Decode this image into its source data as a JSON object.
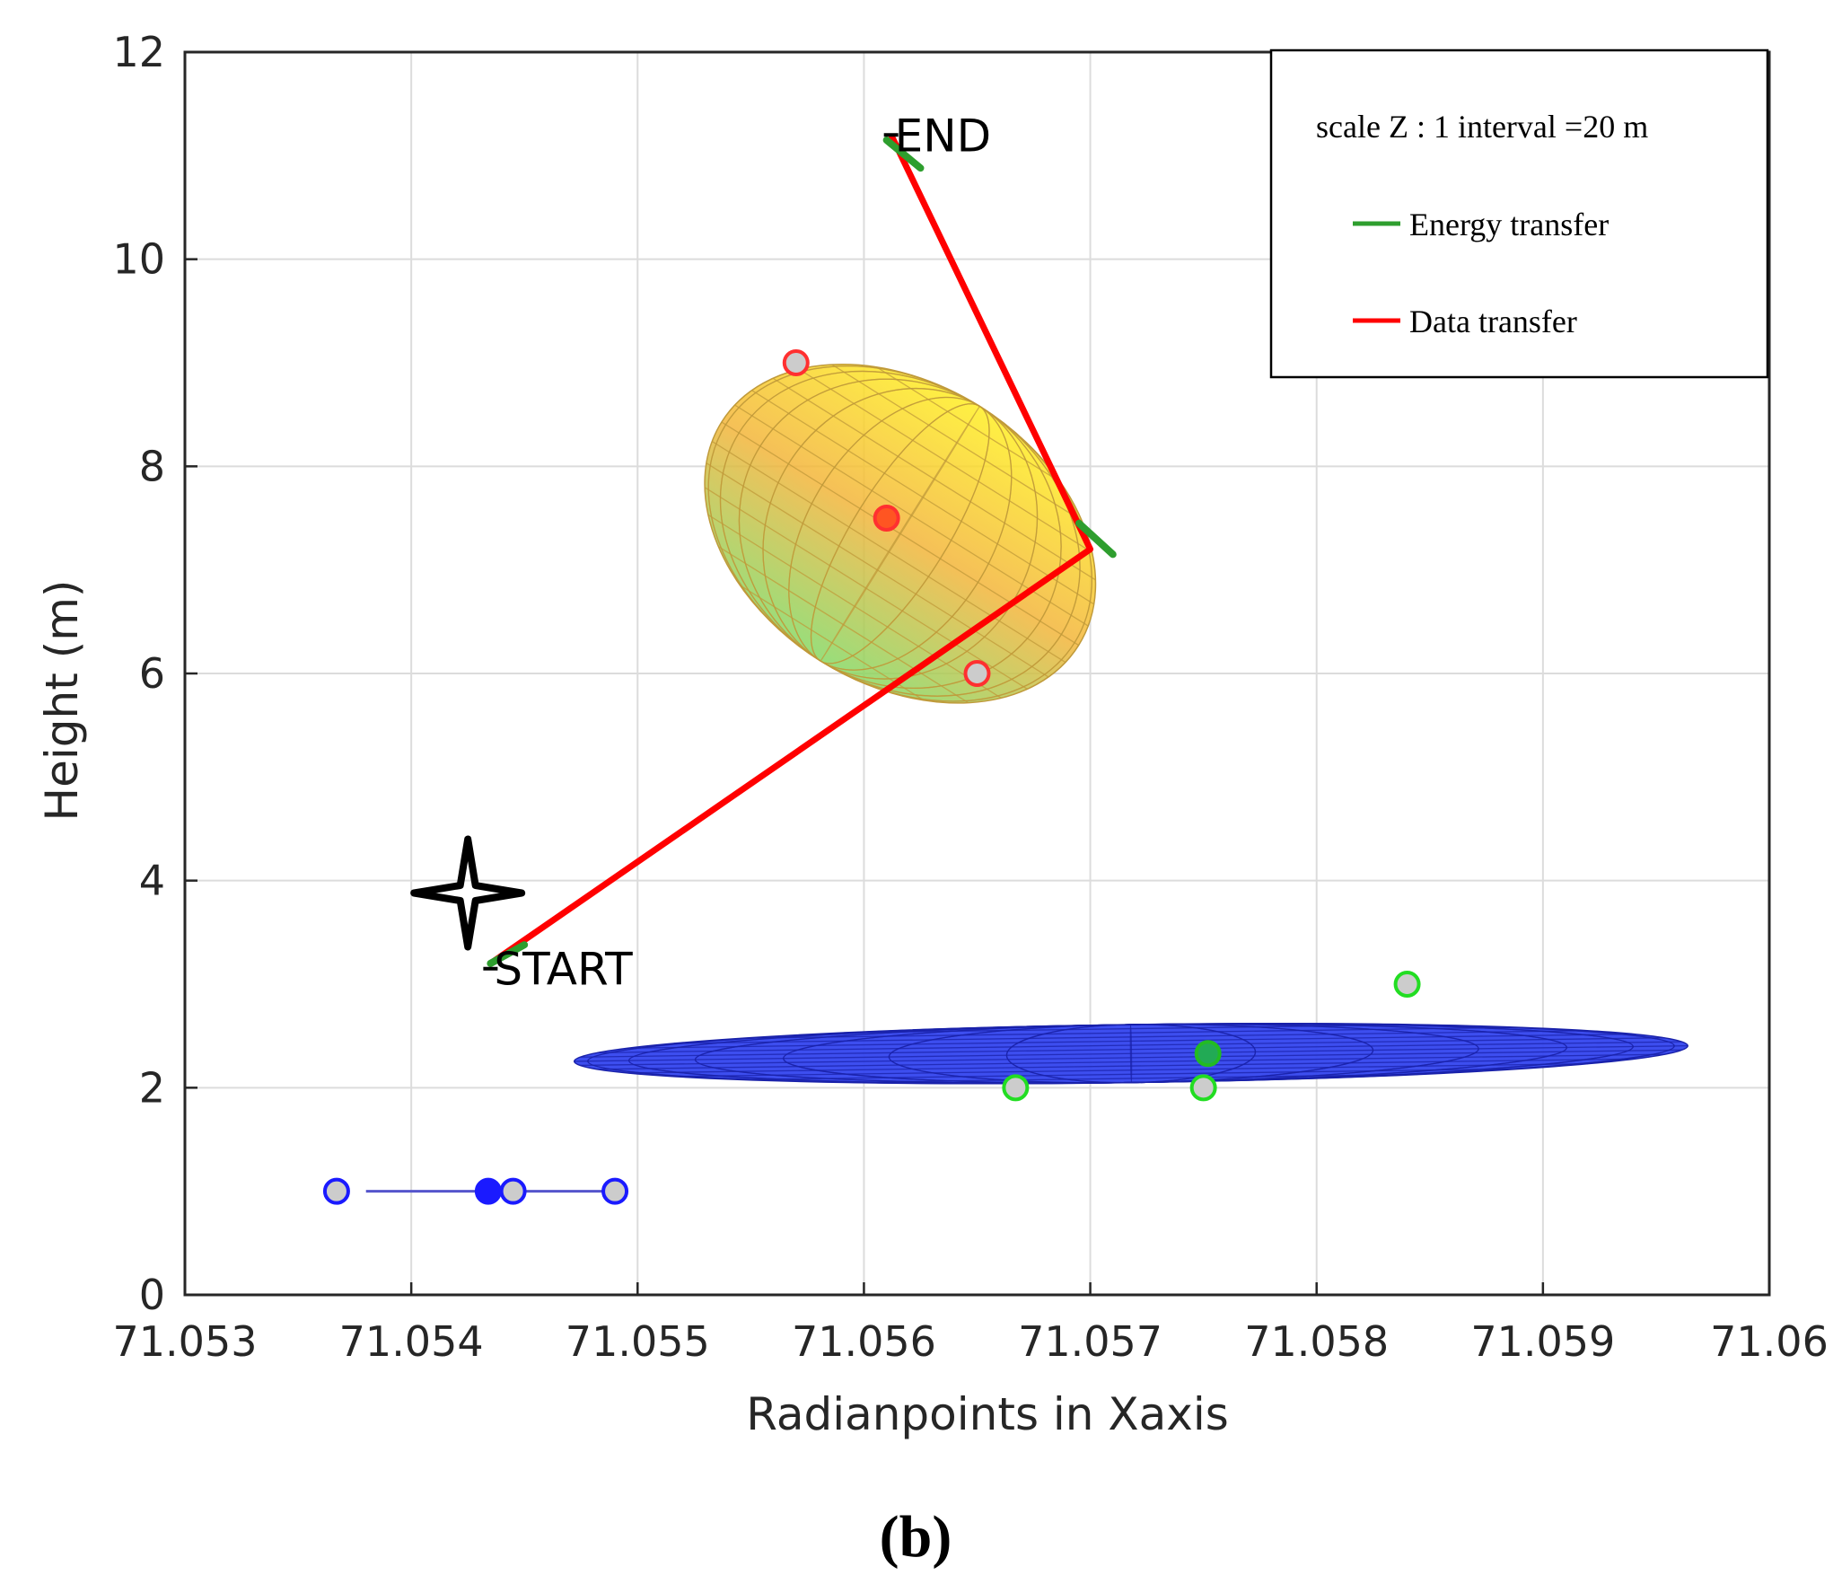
{
  "chart_data": {
    "type": "scatter",
    "xlabel": "Radianpoints in Xaxis",
    "ylabel": "Height (m)",
    "xlim": [
      71.053,
      71.06
    ],
    "ylim": [
      0,
      12
    ],
    "x_ticks": [
      71.053,
      71.054,
      71.055,
      71.056,
      71.057,
      71.058,
      71.059,
      71.06
    ],
    "x_tick_labels": [
      "71.053",
      "71.054",
      "71.055",
      "71.056",
      "71.057",
      "71.058",
      "71.059",
      "71.06"
    ],
    "y_ticks": [
      0,
      2,
      4,
      6,
      8,
      10,
      12
    ],
    "y_tick_labels": [
      "0",
      "2",
      "4",
      "6",
      "8",
      "10",
      "12"
    ],
    "grid": true,
    "legend": {
      "placement": "top-right",
      "header": "scale Z : 1 interval =20 m",
      "entries": [
        {
          "label": "Energy transfer",
          "color": "#2e9e2e"
        },
        {
          "label": "Data transfer",
          "color": "#ff0000"
        }
      ]
    },
    "annotations": [
      {
        "text": "START",
        "x": 71.05435,
        "y": 3.15
      },
      {
        "text": "END",
        "x": 71.05612,
        "y": 11.2
      }
    ],
    "series": [
      {
        "name": "Data transfer",
        "kind": "line",
        "color": "#ff0000",
        "x": [
          71.05435,
          71.057,
          71.05612
        ],
        "y": [
          3.2,
          7.2,
          11.2
        ]
      },
      {
        "name": "Energy transfer",
        "kind": "segments",
        "color": "#2e9e2e",
        "segments": [
          {
            "x": [
              71.05435,
              71.0545
            ],
            "y": [
              3.2,
              3.38
            ]
          },
          {
            "x": [
              71.05695,
              71.0571
            ],
            "y": [
              7.45,
              7.15
            ]
          },
          {
            "x": [
              71.0561,
              71.05625
            ],
            "y": [
              11.15,
              10.88
            ]
          }
        ]
      },
      {
        "name": "Upper nodes",
        "kind": "markers",
        "marker_edge": "#ff3030",
        "marker_fill": "#cccccc",
        "x": [
          71.0557,
          71.0565
        ],
        "y": [
          9.0,
          6.0
        ]
      },
      {
        "name": "Upper centre",
        "kind": "markers",
        "marker_edge": "#ff3030",
        "marker_fill": "#ff5522",
        "x": [
          71.0561
        ],
        "y": [
          7.5
        ]
      },
      {
        "name": "Middle nodes",
        "kind": "markers",
        "marker_edge": "#22dd22",
        "marker_fill": "#cccccc",
        "x": [
          71.05667,
          71.0575,
          71.0584
        ],
        "y": [
          2.0,
          2.0,
          3.0
        ]
      },
      {
        "name": "Middle centre",
        "kind": "markers",
        "marker_edge": "#22bb22",
        "marker_fill": "#22aa55",
        "x": [
          71.05752
        ],
        "y": [
          2.33
        ]
      },
      {
        "name": "Ground nodes",
        "kind": "markers",
        "marker_edge": "#1a1aff",
        "marker_fill": "#cccccc",
        "x": [
          71.05367,
          71.05445,
          71.0549
        ],
        "y": [
          1.0,
          1.0,
          1.0
        ]
      },
      {
        "name": "Ground centre",
        "kind": "markers",
        "marker_edge": "#1a1aff",
        "marker_fill": "#1a1aff",
        "x": [
          71.05434
        ],
        "y": [
          1.0
        ]
      },
      {
        "name": "Ground link",
        "kind": "line",
        "color": "#5555cc",
        "x": [
          71.0538,
          71.0549
        ],
        "y": [
          1.0,
          1.0
        ]
      },
      {
        "name": "Start star",
        "kind": "star",
        "color": "#000000",
        "x": [
          71.05425
        ],
        "y": [
          3.88
        ]
      }
    ],
    "ellipsoids": [
      {
        "name": "upper coverage",
        "center_x": 71.05616,
        "center_y": 7.35,
        "x_radius": 0.00093,
        "y_radius": 1.45,
        "tilt_deg": 32,
        "gradient": [
          "#ffee22",
          "#f0b038",
          "#88d866"
        ],
        "mesh_color": "#c09a3a"
      },
      {
        "name": "lower coverage",
        "center_x": 71.05718,
        "center_y": 2.33,
        "x_radius": 0.00246,
        "y_radius": 0.28,
        "tilt_deg": -0.8,
        "fill": "#3344ee",
        "mesh_color": "#1a22aa"
      }
    ]
  },
  "caption": "(b)"
}
